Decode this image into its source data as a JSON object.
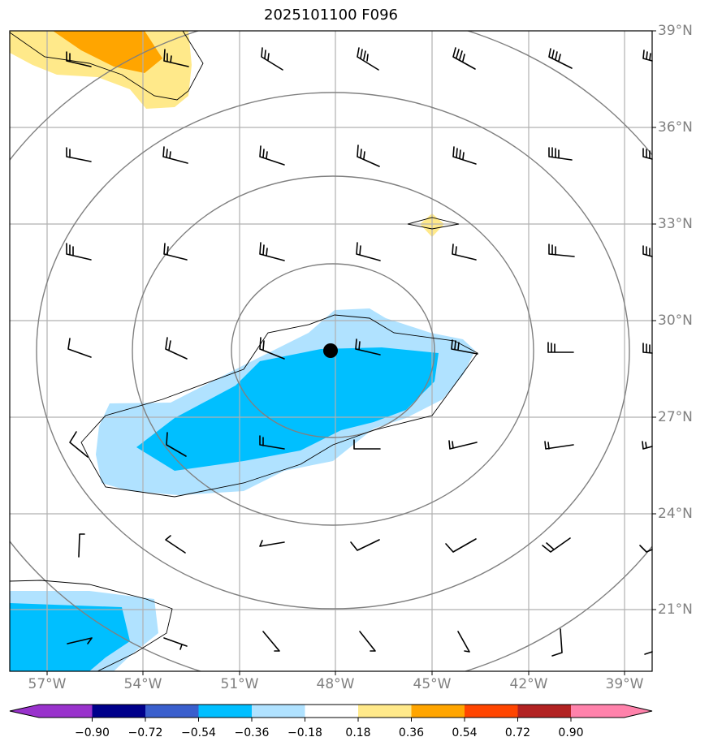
{
  "title": "2025101100 F096",
  "lat_labels": [
    "39°N",
    "36°N",
    "33°N",
    "30°N",
    "27°N",
    "24°N",
    "21°N"
  ],
  "lon_labels": [
    "57°W",
    "54°W",
    "51°W",
    "48°W",
    "45°W",
    "42°W",
    "39°W"
  ],
  "colorbar": {
    "ticks": [
      "−0.90",
      "−0.72",
      "−0.54",
      "−0.36",
      "−0.18",
      "0.18",
      "0.36",
      "0.54",
      "0.72",
      "0.90"
    ],
    "colors": [
      "#9932cc",
      "#00008b",
      "#3a5fcd",
      "#00bfff",
      "#b0e2ff",
      "#ffffff",
      "#ffe98a",
      "#ffa500",
      "#ff4500",
      "#b22222",
      "#ff82ab"
    ]
  },
  "colors": {
    "grid": "#b0b0b0",
    "circle": "#808080",
    "barb": "#000000",
    "contour": "#000000"
  },
  "center_marker": "storm-center-dot"
}
